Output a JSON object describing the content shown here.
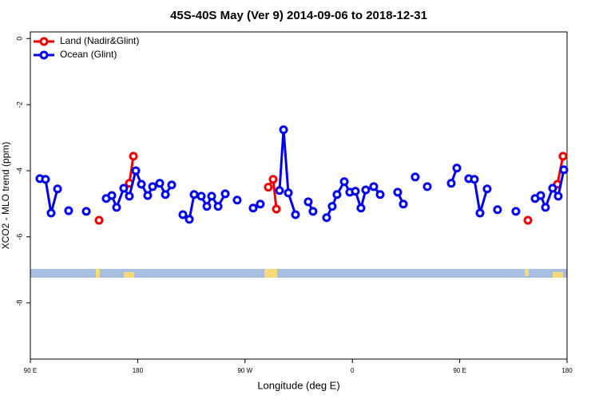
{
  "chart_data": {
    "type": "line",
    "title": "45S-40S May (Ver 9)   2014-09-06 to 2018-12-31",
    "xlabel": "Longitude (deg E)",
    "ylabel": "XCO2 - MLO trend (ppm)",
    "xlim": [
      90,
      540
    ],
    "xticks": [
      {
        "value": 90,
        "label": "90 E"
      },
      {
        "value": 180,
        "label": "180"
      },
      {
        "value": 270,
        "label": "90 W"
      },
      {
        "value": 360,
        "label": "0"
      },
      {
        "value": 450,
        "label": "90 E"
      },
      {
        "value": 540,
        "label": "180"
      }
    ],
    "ylim": [
      -9.7,
      0.2
    ],
    "yticks": [
      0,
      -2,
      -4,
      -6,
      -8
    ],
    "legend": "topleft",
    "series": [
      {
        "name": "Land (Nadir&Glint)",
        "color": "#ee0000",
        "x": [
          147.6,
          null,
          173.0,
          176.4,
          null,
          289.5,
          293.6,
          296.3,
          null,
          507.2,
          null,
          531.9,
          536.6
        ],
        "values": [
          -5.5,
          null,
          -4.38,
          -3.56,
          null,
          -4.5,
          -4.26,
          -5.16,
          null,
          -5.5,
          null,
          -4.41,
          -3.56
        ]
      },
      {
        "name": "Ocean (Glint)",
        "color": "#0000ee",
        "x": [
          98.0,
          102.7,
          107.4,
          112.8,
          null,
          122.1,
          null,
          136.9,
          null,
          153.6,
          158.3,
          162.3,
          168.3,
          173.0,
          178.4,
          183.1,
          188.4,
          192.5,
          198.5,
          203.2,
          208.5,
          null,
          217.9,
          223.3,
          227.3,
          233.3,
          238.0,
          242.0,
          247.4,
          253.4,
          null,
          263.4,
          null,
          276.8,
          282.8,
          null,
          298.9,
          302.3,
          306.3,
          312.3,
          null,
          323.0,
          327.0,
          null,
          338.4,
          343.1,
          347.1,
          353.2,
          357.8,
          362.5,
          367.2,
          371.2,
          377.9,
          383.3,
          null,
          398.0,
          402.7,
          null,
          412.7,
          null,
          422.8,
          null,
          442.9,
          447.6,
          null,
          457.6,
          462.3,
          467.0,
          473.0,
          null,
          481.7,
          null,
          497.1,
          null,
          513.2,
          517.9,
          521.9,
          527.9,
          532.6,
          537.3
        ],
        "values": [
          -4.24,
          -4.26,
          -5.28,
          -4.55,
          null,
          -5.21,
          null,
          -5.23,
          null,
          -4.84,
          -4.75,
          -5.11,
          -4.53,
          -4.77,
          -4.0,
          -4.41,
          -4.75,
          -4.48,
          -4.38,
          -4.72,
          -4.43,
          null,
          -5.33,
          -5.47,
          -4.72,
          -4.77,
          -5.08,
          -4.77,
          -5.08,
          -4.7,
          null,
          -4.89,
          null,
          -5.13,
          -5.01,
          null,
          -4.6,
          -2.76,
          -4.67,
          -5.33,
          null,
          -4.94,
          -5.23,
          null,
          -5.42,
          -5.08,
          -4.72,
          -4.33,
          -4.65,
          -4.62,
          -5.13,
          -4.58,
          -4.48,
          -4.72,
          null,
          -4.65,
          -5.01,
          null,
          -4.19,
          null,
          -4.48,
          null,
          -4.38,
          -3.92,
          null,
          -4.24,
          -4.26,
          -5.28,
          -4.55,
          null,
          -5.18,
          null,
          -5.23,
          null,
          -4.84,
          -4.75,
          -5.11,
          -4.53,
          -4.77,
          -3.97
        ]
      }
    ]
  }
}
